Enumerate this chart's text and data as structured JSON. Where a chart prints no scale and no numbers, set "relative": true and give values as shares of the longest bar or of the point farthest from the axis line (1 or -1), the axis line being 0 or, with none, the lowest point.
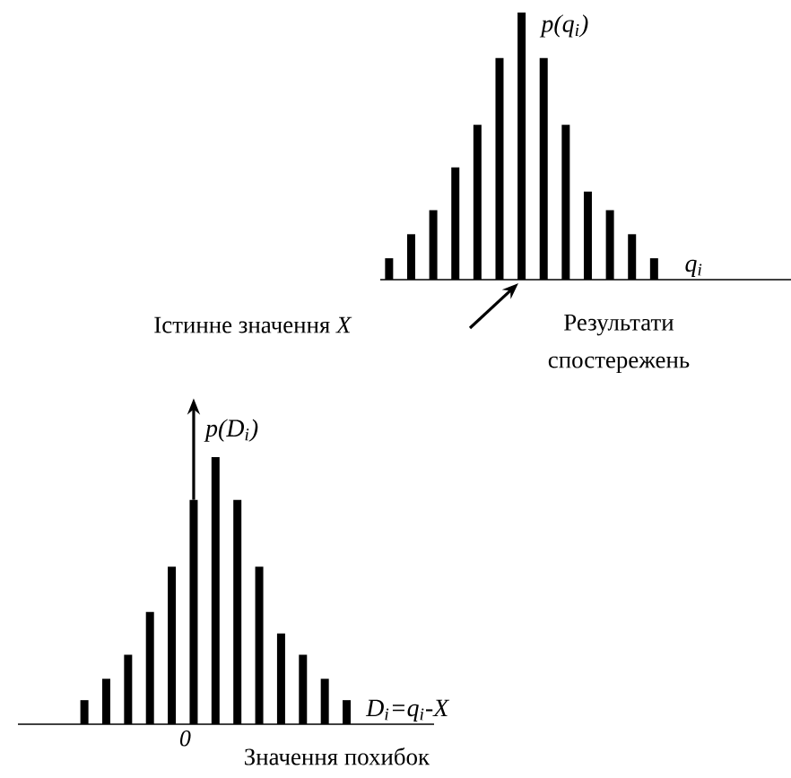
{
  "chart_data": [
    {
      "type": "bar",
      "relative": true,
      "color": "#000000",
      "ylabel": "p(q$_{i}$)",
      "xlabel": "q$_{i}$",
      "categories": [
        null,
        null,
        null,
        null,
        null,
        null,
        null,
        null,
        null,
        null,
        null,
        null,
        null
      ],
      "values": [
        0.08,
        0.17,
        0.26,
        0.42,
        0.58,
        0.83,
        1,
        0.83,
        0.58,
        0.33,
        0.26,
        0.17,
        0.08
      ],
      "annotations": [
        "Істинне значення *X*",
        "Результати спостережень"
      ]
    },
    {
      "type": "bar",
      "relative": true,
      "color": "#000000",
      "ylabel": "p(D$_{i}$)",
      "xlabel": "D$_{i}$=q$_{i}$-X",
      "categories": [
        null,
        null,
        null,
        null,
        null,
        "0",
        null,
        null,
        null,
        null,
        null,
        null,
        null
      ],
      "values": [
        0.09,
        0.17,
        0.26,
        0.42,
        0.59,
        0.84,
        1,
        0.84,
        0.59,
        0.34,
        0.26,
        0.17,
        0.09
      ],
      "annotations": [
        "Значення похибок"
      ]
    }
  ]
}
